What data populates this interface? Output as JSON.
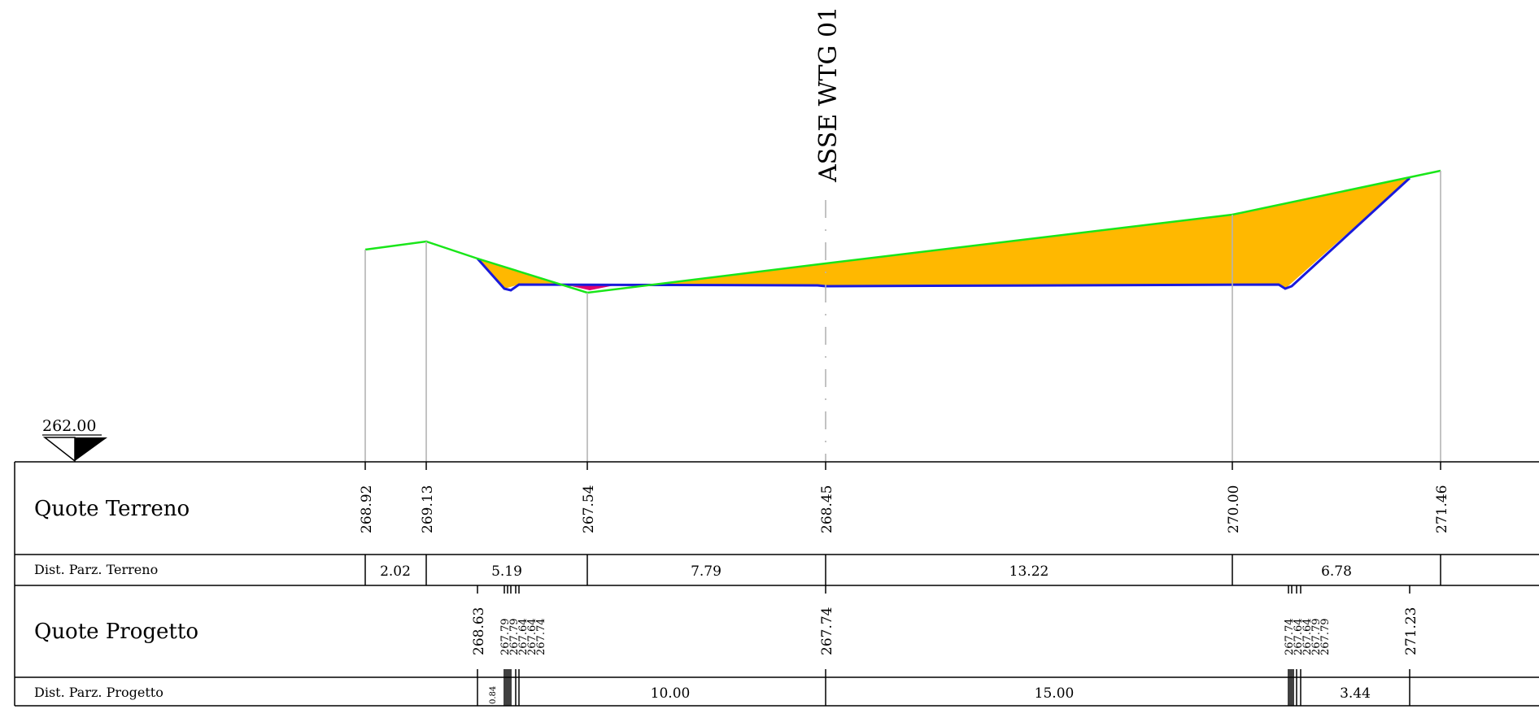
{
  "axis_label": "ASSE WTG 01",
  "datum": {
    "label": "262.00"
  },
  "rows": {
    "quote_terreno": "Quote Terreno",
    "dist_parz_terreno": "Dist. Parz. Terreno",
    "quote_progetto": "Quote Progetto",
    "dist_parz_progetto": "Dist. Parz. Progetto"
  },
  "colors": {
    "terrain": "#19e619",
    "design": "#1a1adb",
    "fill": "#ffb800",
    "cut_fill": "#e0006e",
    "guide": "#b4b4b4"
  },
  "terrain_elevations": [
    "268.92",
    "269.13",
    "267.54",
    "268.45",
    "270.00",
    "271.46"
  ],
  "terrain_distances": [
    "2.02",
    "5.19",
    "7.79",
    "13.22",
    "6.78"
  ],
  "design_elevations": {
    "left": [
      "268.63",
      "267.79",
      "267.79",
      "267.64",
      "267.64",
      "267.74"
    ],
    "center": "267.74",
    "right": [
      "267.74",
      "267.64",
      "267.64",
      "267.79",
      "267.79"
    ],
    "far_right": "271.23"
  },
  "design_distances": {
    "small_left": "0.84",
    "main": [
      "10.00",
      "15.00",
      "3.44"
    ]
  }
}
